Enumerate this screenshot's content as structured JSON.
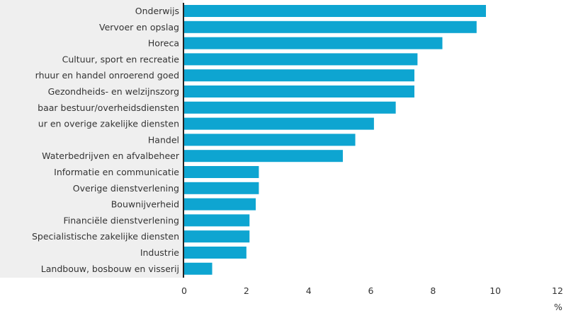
{
  "chart_data": {
    "type": "bar",
    "orientation": "horizontal",
    "categories": [
      "Onderwijs",
      "Vervoer en opslag",
      "Horeca",
      "Cultuur, sport en recreatie",
      "rhuur en handel onroerend goed",
      "Gezondheids- en welzijnszorg",
      "baar bestuur/overheidsdiensten",
      "ur en overige zakelijke diensten",
      "Handel",
      "Waterbedrijven en afvalbeheer",
      "Informatie en communicatie",
      "Overige dienstverlening",
      "Bouwnijverheid",
      "Financiële dienstverlening",
      "Specialistische zakelijke diensten",
      "Industrie",
      "Landbouw, bosbouw en visserij"
    ],
    "values": [
      9.7,
      9.4,
      8.3,
      7.5,
      7.4,
      7.4,
      6.8,
      6.1,
      5.5,
      5.1,
      2.4,
      2.4,
      2.3,
      2.1,
      2.1,
      2.0,
      0.9
    ],
    "xlim": [
      0,
      12
    ],
    "xticks": [
      0,
      2,
      4,
      6,
      8,
      10,
      12
    ],
    "xlabel": "%",
    "grid": false,
    "colors": {
      "bar": "#0ea5d1",
      "label_band": "#efefef",
      "axis": "#222222",
      "text": "#333333"
    }
  }
}
